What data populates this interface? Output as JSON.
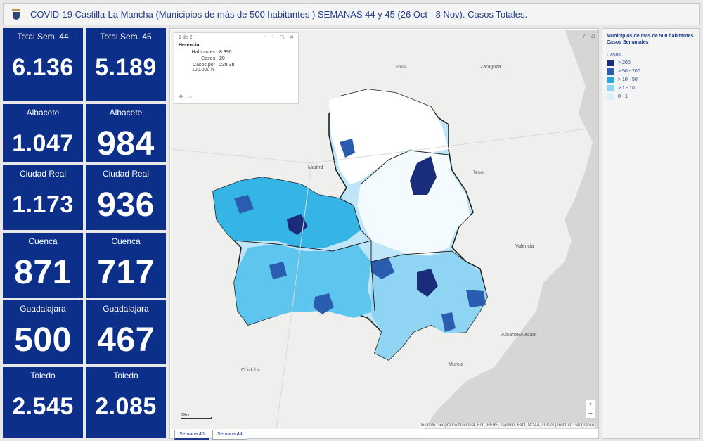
{
  "header": {
    "title": "COVID-19 Castilla-La Mancha (Municipios de más de 500 habitantes ) SEMANAS 44 y 45 (26 Oct - 8 Nov). Casos Totales."
  },
  "kpis": [
    {
      "label": "Total Sem. 44",
      "value": "6.136"
    },
    {
      "label": "Total Sem. 45",
      "value": "5.189"
    },
    {
      "label": "Albacete",
      "value": "1.047"
    },
    {
      "label": "Albacete",
      "value": "984"
    },
    {
      "label": "Ciudad Real",
      "value": "1.173"
    },
    {
      "label": "Ciudad Real",
      "value": "936"
    },
    {
      "label": "Cuenca",
      "value": "871"
    },
    {
      "label": "Cuenca",
      "value": "717"
    },
    {
      "label": "Guadalajara",
      "value": "500"
    },
    {
      "label": "Guadalajara",
      "value": "467"
    },
    {
      "label": "Toledo",
      "value": "2.545"
    },
    {
      "label": "Toledo",
      "value": "2.085"
    }
  ],
  "popup": {
    "pager": "1 de 2",
    "title": "Herencia",
    "rows": [
      {
        "key": "Habitantes",
        "value": "8.390"
      },
      {
        "key": "Casos",
        "value": "20"
      },
      {
        "key": "Casos por 100.000 h.",
        "value": "238,38"
      }
    ]
  },
  "map": {
    "place_labels": [
      "Madrid",
      "Zaragoza",
      "Valencia",
      "Murcia",
      "Córdoba",
      "Alicante/Alacant",
      "Teruel",
      "Soria"
    ],
    "attribution": "Instituto Geográfico Nacional, Esri, HERE, Garmin, FAO, NOAA, USGS | Instituto Geográfico",
    "scale_label": "60km",
    "zoom_in": "+",
    "zoom_out": "−"
  },
  "tabs": [
    {
      "label": "Semana 45"
    },
    {
      "label": "Semana 44"
    }
  ],
  "legend": {
    "title": "Municipios de mas de 500 habitantes. Casos Semanales",
    "subtitle": "Casos",
    "items": [
      {
        "label": "> 200",
        "color": "#1a2d7a"
      },
      {
        "label": "> 50 - 200",
        "color": "#2a5cb0"
      },
      {
        "label": "> 10 - 50",
        "color": "#2aa6de"
      },
      {
        "label": "> 1 - 10",
        "color": "#8fd4f2"
      },
      {
        "label": "0 - 1",
        "color": "#d9effa"
      }
    ]
  }
}
